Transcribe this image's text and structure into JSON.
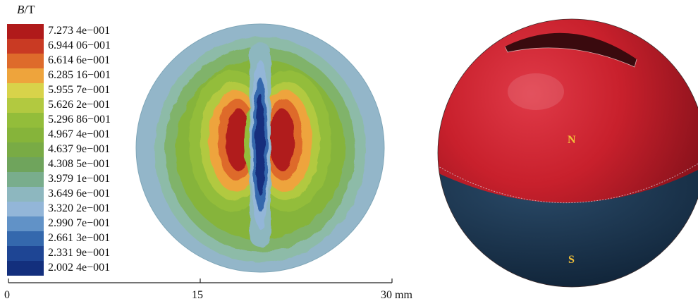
{
  "legend": {
    "title_var": "B",
    "title_unit": "/T",
    "entries": [
      {
        "label": "7.273 4e−001",
        "color": "#b01a1a"
      },
      {
        "label": "6.944 06−001",
        "color": "#c93a23"
      },
      {
        "label": "6.614 6e−001",
        "color": "#de6b2b"
      },
      {
        "label": "6.285 16−001",
        "color": "#eea43c"
      },
      {
        "label": "5.955 7e−001",
        "color": "#d8d34a"
      },
      {
        "label": "5.626 2e−001",
        "color": "#b2c940"
      },
      {
        "label": "5.296 86−001",
        "color": "#93bd3a"
      },
      {
        "label": "4.967 4e−001",
        "color": "#86b43a"
      },
      {
        "label": "4.637 9e−001",
        "color": "#79ab45"
      },
      {
        "label": "4.308 5e−001",
        "color": "#6fa45c"
      },
      {
        "label": "3.979 1e−001",
        "color": "#79ad8c"
      },
      {
        "label": "3.649 6e−001",
        "color": "#8db7bf"
      },
      {
        "label": "3.320 2e−001",
        "color": "#93b6d8"
      },
      {
        "label": "2.990 7e−001",
        "color": "#6192c7"
      },
      {
        "label": "2.661 3e−001",
        "color": "#3468ad"
      },
      {
        "label": "2.331 9e−001",
        "color": "#1e4594"
      },
      {
        "label": "2.002 4e−001",
        "color": "#132f7d"
      }
    ]
  },
  "scale_bar": {
    "ticks": [
      {
        "value": 0,
        "label": "0"
      },
      {
        "value": 15,
        "label": "15"
      },
      {
        "value": 30,
        "label": "30 mm"
      }
    ],
    "max": 30
  },
  "magnet": {
    "north_label": "N",
    "south_label": "S",
    "north_color": "#c8202c",
    "south_color": "#1b3550"
  }
}
